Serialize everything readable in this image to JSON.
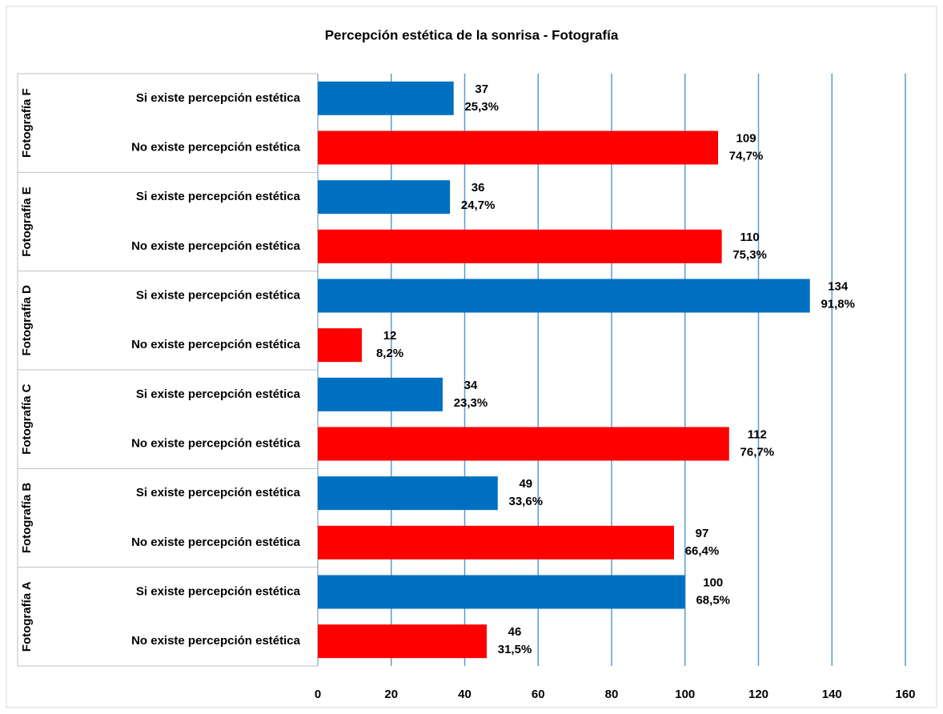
{
  "chart_data": {
    "type": "hbar-grouped",
    "title": "Percepción estética de la sonrisa - Fotografía",
    "groups": [
      "Fotografía F",
      "Fotografía E",
      "Fotografía D",
      "Fotografía C",
      "Fotografía B",
      "Fotografía A"
    ],
    "series": [
      {
        "name": "Si existe  percepción estética",
        "color": "#0070c0",
        "values": [
          37,
          36,
          134,
          34,
          49,
          100
        ],
        "value_labels": [
          [
            "37",
            "25,3%"
          ],
          [
            "36",
            "24,7%"
          ],
          [
            "134",
            "91,8%"
          ],
          [
            "34",
            "23,3%"
          ],
          [
            "49",
            "33,6%"
          ],
          [
            "100",
            "68,5%"
          ]
        ]
      },
      {
        "name": "No existe  percepción estética",
        "color": "#ff0000",
        "values": [
          109,
          110,
          12,
          112,
          97,
          46
        ],
        "value_labels": [
          [
            "109",
            "74,7%"
          ],
          [
            "110",
            "75,3%"
          ],
          [
            "12",
            "8,2%"
          ],
          [
            "112",
            "76,7%"
          ],
          [
            "97",
            "66,4%"
          ],
          [
            "46",
            "31,5%"
          ]
        ]
      }
    ],
    "xlim": [
      0,
      160
    ],
    "xticks": [
      0,
      20,
      40,
      60,
      80,
      100,
      120,
      140,
      160
    ],
    "grid": true,
    "grid_color": "#5b9bd5"
  }
}
